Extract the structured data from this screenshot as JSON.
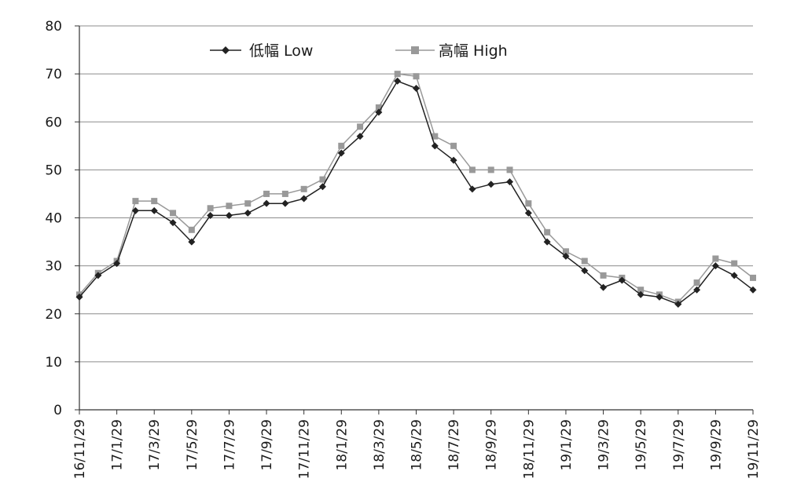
{
  "chart_data": {
    "type": "line",
    "title": "",
    "xlabel": "",
    "ylabel": "",
    "ylim": [
      0,
      80
    ],
    "yticks": [
      0,
      10,
      20,
      30,
      40,
      50,
      60,
      70,
      80
    ],
    "x_tick_labels": [
      "16/11/29",
      "17/1/29",
      "17/3/29",
      "17/5/29",
      "17/7/29",
      "17/9/29",
      "17/11/29",
      "18/1/29",
      "18/3/29",
      "18/5/29",
      "18/7/29",
      "18/9/29",
      "18/11/29",
      "19/1/29",
      "19/3/29",
      "19/5/29",
      "19/7/29",
      "19/9/29",
      "19/11/29"
    ],
    "grid": "horizontal",
    "legend_position": "top",
    "series": [
      {
        "name": "低幅 Low",
        "color": "#222222",
        "marker": "diamond",
        "x": [
          0,
          0.5,
          1,
          1.5,
          2,
          2.5,
          3,
          3.5,
          4,
          4.5,
          5,
          5.5,
          6,
          6.5,
          7,
          7.5,
          8,
          8.5,
          9,
          9.5,
          10,
          10.5,
          11,
          11.5,
          12,
          12.5,
          13,
          13.5,
          14,
          14.5,
          15,
          15.5,
          16,
          16.5,
          17,
          17.5,
          18
        ],
        "values": [
          23.5,
          28,
          30.5,
          41.5,
          41.5,
          39,
          35,
          40.5,
          40.5,
          41,
          43,
          43,
          44,
          46.5,
          53.5,
          57,
          62,
          68.5,
          67,
          55,
          52,
          46,
          47,
          47.5,
          41,
          35,
          32,
          29,
          25.5,
          27,
          24,
          23.5,
          22,
          25,
          30,
          28,
          25
        ]
      },
      {
        "name": "高幅 High",
        "color": "#999999",
        "marker": "square",
        "x": [
          0,
          0.5,
          1,
          1.5,
          2,
          2.5,
          3,
          3.5,
          4,
          4.5,
          5,
          5.5,
          6,
          6.5,
          7,
          7.5,
          8,
          8.5,
          9,
          9.5,
          10,
          10.5,
          11,
          11.5,
          12,
          12.5,
          13,
          13.5,
          14,
          14.5,
          15,
          15.5,
          16,
          16.5,
          17,
          17.5,
          18
        ],
        "values": [
          24,
          28.5,
          31,
          43.5,
          43.5,
          41,
          37.5,
          42,
          42.5,
          43,
          45,
          45,
          46,
          48,
          55,
          59,
          63,
          70,
          69.5,
          57,
          55,
          50,
          50,
          50,
          43,
          37,
          33,
          31,
          28,
          27.5,
          25,
          24,
          22.5,
          26.5,
          31.5,
          30.5,
          27.5
        ]
      }
    ]
  }
}
